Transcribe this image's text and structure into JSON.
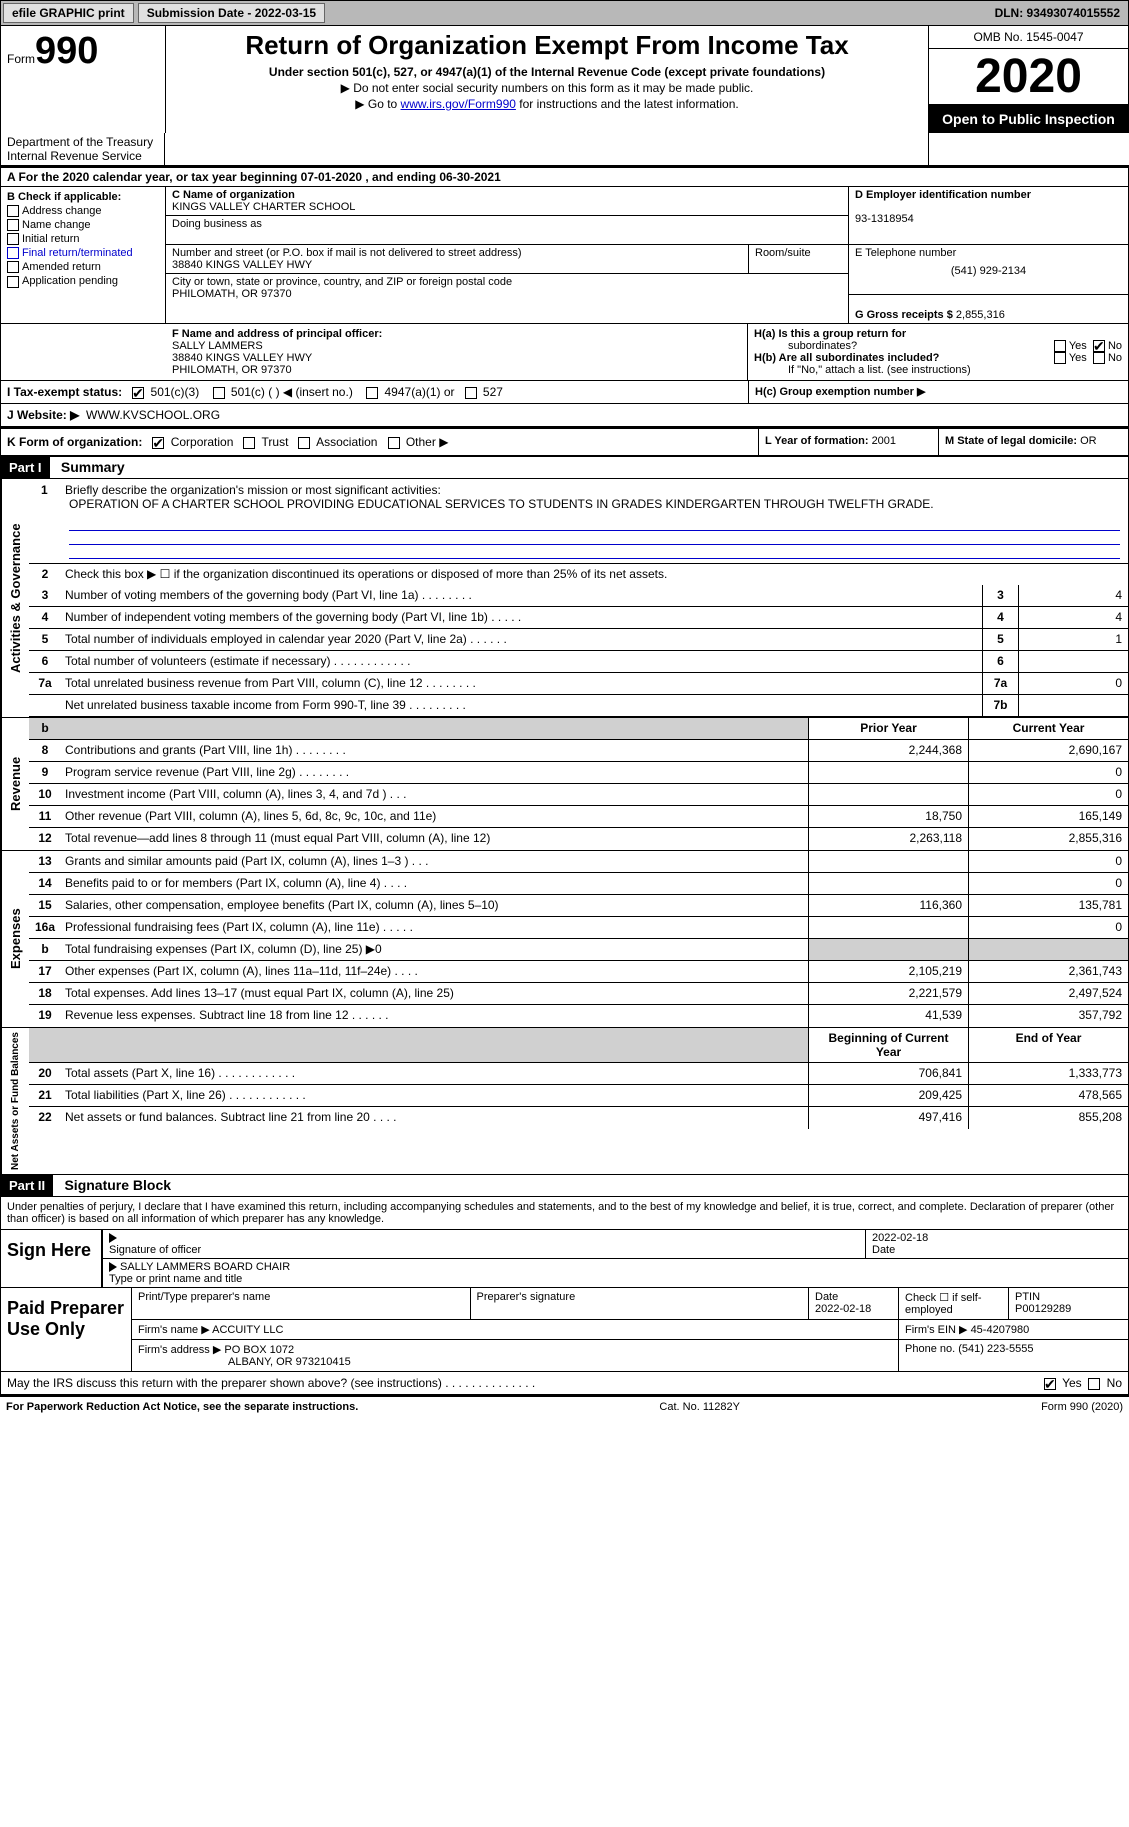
{
  "topbar": {
    "efile_btn": "efile GRAPHIC print",
    "submission_label": "Submission Date - 2022-03-15",
    "dln": "DLN: 93493074015552"
  },
  "header": {
    "form_prefix": "Form",
    "form_number": "990",
    "title": "Return of Organization Exempt From Income Tax",
    "subtitle": "Under section 501(c), 527, or 4947(a)(1) of the Internal Revenue Code (except private foundations)",
    "line1": "▶ Do not enter social security numbers on this form as it may be made public.",
    "line2_pre": "▶ Go to ",
    "line2_link": "www.irs.gov/Form990",
    "line2_post": " for instructions and the latest information.",
    "dept": "Department of the Treasury\nInternal Revenue Service",
    "omb": "OMB No. 1545-0047",
    "year": "2020",
    "inspection": "Open to Public Inspection"
  },
  "row_a": "A For the 2020 calendar year, or tax year beginning 07-01-2020    , and ending 06-30-2021",
  "section_b": {
    "b_label": "B Check if applicable:",
    "b_items": [
      "Address change",
      "Name change",
      "Initial return",
      "Final return/terminated",
      "Amended return",
      "Application pending"
    ],
    "c_label": "C Name of organization",
    "c_name": "KINGS VALLEY CHARTER SCHOOL",
    "dba_label": "Doing business as",
    "dba": "",
    "addr_label": "Number and street (or P.O. box if mail is not delivered to street address)",
    "addr": "38840 KINGS VALLEY HWY",
    "room_label": "Room/suite",
    "city_label": "City or town, state or province, country, and ZIP or foreign postal code",
    "city": "PHILOMATH, OR  97370",
    "d_label": "D Employer identification number",
    "d_ein": "93-1318954",
    "e_label": "E Telephone number",
    "e_phone": "(541) 929-2134",
    "g_label": "G Gross receipts $ ",
    "g_amount": "2,855,316"
  },
  "section_f": {
    "f_label": "F Name and address of principal officer:",
    "f_name": "SALLY LAMMERS",
    "f_addr1": "38840 KINGS VALLEY HWY",
    "f_addr2": "PHILOMATH, OR  97370",
    "ha_label": "H(a)  Is this a group return for",
    "ha_sub": "subordinates?",
    "hb_label": "H(b)  Are all subordinates included?",
    "h_note": "If \"No,\" attach a list. (see instructions)",
    "hc_label": "H(c)  Group exemption number ▶",
    "yes": "Yes",
    "no": "No"
  },
  "row_i": {
    "label": "I     Tax-exempt status:",
    "opt1": "501(c)(3)",
    "opt2": "501(c) (  ) ◀ (insert no.)",
    "opt3": "4947(a)(1) or",
    "opt4": "527"
  },
  "row_j": {
    "label": "J    Website: ▶",
    "value": "WWW.KVSCHOOL.ORG"
  },
  "row_k": {
    "label": "K Form of organization:",
    "opts": [
      "Corporation",
      "Trust",
      "Association",
      "Other ▶"
    ],
    "l_label": "L Year of formation: ",
    "l_val": "2001",
    "m_label": "M State of legal domicile: ",
    "m_val": "OR"
  },
  "part1": {
    "header": "Part I",
    "title": "Summary",
    "q1": "Briefly describe the organization's mission or most significant activities:",
    "mission": "OPERATION OF A CHARTER SCHOOL PROVIDING EDUCATIONAL SERVICES TO STUDENTS IN GRADES KINDERGARTEN THROUGH TWELFTH GRADE.",
    "q2": "Check this box ▶ ☐  if the organization discontinued its operations or disposed of more than 25% of its net assets.",
    "side_gov": "Activities & Governance",
    "side_rev": "Revenue",
    "side_exp": "Expenses",
    "side_net": "Net Assets or Fund Balances",
    "col_prior": "Prior Year",
    "col_current": "Current Year",
    "col_beg": "Beginning of Current Year",
    "col_end": "End of Year",
    "lines_gov": [
      {
        "n": "3",
        "t": "Number of voting members of the governing body (Part VI, line 1a)   .    .    .    .    .    .    .    .",
        "box": "3",
        "v": "4"
      },
      {
        "n": "4",
        "t": "Number of independent voting members of the governing body (Part VI, line 1b)   .    .    .    .    .",
        "box": "4",
        "v": "4"
      },
      {
        "n": "5",
        "t": "Total number of individuals employed in calendar year 2020 (Part V, line 2a)   .    .    .    .    .    .",
        "box": "5",
        "v": "1"
      },
      {
        "n": "6",
        "t": "Total number of volunteers (estimate if necessary)   .    .    .    .    .    .    .    .    .    .    .    .",
        "box": "6",
        "v": ""
      },
      {
        "n": "7a",
        "t": "Total unrelated business revenue from Part VIII, column (C), line 12   .    .    .    .    .    .    .    .",
        "box": "7a",
        "v": "0"
      },
      {
        "n": "",
        "t": "Net unrelated business taxable income from Form 990-T, line 39   .    .    .    .    .    .    .    .    .",
        "box": "7b",
        "v": ""
      }
    ],
    "lines_rev": [
      {
        "n": "8",
        "t": "Contributions and grants (Part VIII, line 1h)   .    .    .    .    .    .    .    .",
        "py": "2,244,368",
        "cy": "2,690,167"
      },
      {
        "n": "9",
        "t": "Program service revenue (Part VIII, line 2g)   .    .    .    .    .    .    .    .",
        "py": "",
        "cy": "0"
      },
      {
        "n": "10",
        "t": "Investment income (Part VIII, column (A), lines 3, 4, and 7d )   .    .    .",
        "py": "",
        "cy": "0"
      },
      {
        "n": "11",
        "t": "Other revenue (Part VIII, column (A), lines 5, 6d, 8c, 9c, 10c, and 11e)",
        "py": "18,750",
        "cy": "165,149"
      },
      {
        "n": "12",
        "t": "Total revenue—add lines 8 through 11 (must equal Part VIII, column (A), line 12)",
        "py": "2,263,118",
        "cy": "2,855,316"
      }
    ],
    "lines_exp": [
      {
        "n": "13",
        "t": "Grants and similar amounts paid (Part IX, column (A), lines 1–3 )   .    .    .",
        "py": "",
        "cy": "0"
      },
      {
        "n": "14",
        "t": "Benefits paid to or for members (Part IX, column (A), line 4)   .    .    .    .",
        "py": "",
        "cy": "0"
      },
      {
        "n": "15",
        "t": "Salaries, other compensation, employee benefits (Part IX, column (A), lines 5–10)",
        "py": "116,360",
        "cy": "135,781"
      },
      {
        "n": "16a",
        "t": "Professional fundraising fees (Part IX, column (A), line 11e)   .    .    .    .    .",
        "py": "",
        "cy": "0"
      },
      {
        "n": "b",
        "t": "Total fundraising expenses (Part IX, column (D), line 25) ▶0",
        "py": "GREY",
        "cy": "GREY"
      },
      {
        "n": "17",
        "t": "Other expenses (Part IX, column (A), lines 11a–11d, 11f–24e)   .    .    .    .",
        "py": "2,105,219",
        "cy": "2,361,743"
      },
      {
        "n": "18",
        "t": "Total expenses. Add lines 13–17 (must equal Part IX, column (A), line 25)",
        "py": "2,221,579",
        "cy": "2,497,524"
      },
      {
        "n": "19",
        "t": "Revenue less expenses. Subtract line 18 from line 12   .    .    .    .    .    .",
        "py": "41,539",
        "cy": "357,792"
      }
    ],
    "lines_net": [
      {
        "n": "20",
        "t": "Total assets (Part X, line 16)   .    .    .    .    .    .    .    .    .    .    .    .",
        "py": "706,841",
        "cy": "1,333,773"
      },
      {
        "n": "21",
        "t": "Total liabilities (Part X, line 26)   .    .    .    .    .    .    .    .    .    .    .    .",
        "py": "209,425",
        "cy": "478,565"
      },
      {
        "n": "22",
        "t": "Net assets or fund balances. Subtract line 21 from line 20   .    .    .    .",
        "py": "497,416",
        "cy": "855,208"
      }
    ]
  },
  "part2": {
    "header": "Part II",
    "title": "Signature Block",
    "penalties": "Under penalties of perjury, I declare that I have examined this return, including accompanying schedules and statements, and to the best of my knowledge and belief, it is true, correct, and complete. Declaration of preparer (other than officer) is based on all information of which preparer has any knowledge.",
    "sign_here": "Sign Here",
    "sig_officer": "Signature of officer",
    "sig_date": "2022-02-18",
    "date_label": "Date",
    "officer_name": "SALLY LAMMERS  BOARD CHAIR",
    "officer_type": "Type or print name and title",
    "paid_prep": "Paid Preparer Use Only",
    "prep_name_label": "Print/Type preparer's name",
    "prep_sig_label": "Preparer's signature",
    "prep_date_label": "Date",
    "prep_date": "2022-02-18",
    "check_self": "Check ☐ if self-employed",
    "ptin_label": "PTIN",
    "ptin": "P00129289",
    "firm_name_label": "Firm's name      ▶",
    "firm_name": "ACCUITY LLC",
    "firm_ein_label": "Firm's EIN ▶",
    "firm_ein": "45-4207980",
    "firm_addr_label": "Firm's address ▶",
    "firm_addr": "PO BOX 1072",
    "firm_city": "ALBANY, OR  973210415",
    "firm_phone_label": "Phone no. ",
    "firm_phone": "(541) 223-5555",
    "irs_discuss": "May the IRS discuss this return with the preparer shown above? (see instructions)   .    .    .    .    .    .    .    .    .    .    .    .    .    .",
    "yes": "Yes",
    "no": "No"
  },
  "footer": {
    "left": "For Paperwork Reduction Act Notice, see the separate instructions.",
    "mid": "Cat. No. 11282Y",
    "right": "Form 990 (2020)"
  },
  "colors": {
    "link": "#0000cc",
    "topbar_bg": "#b8b8b8",
    "grey_cell": "#d0d0d0"
  }
}
